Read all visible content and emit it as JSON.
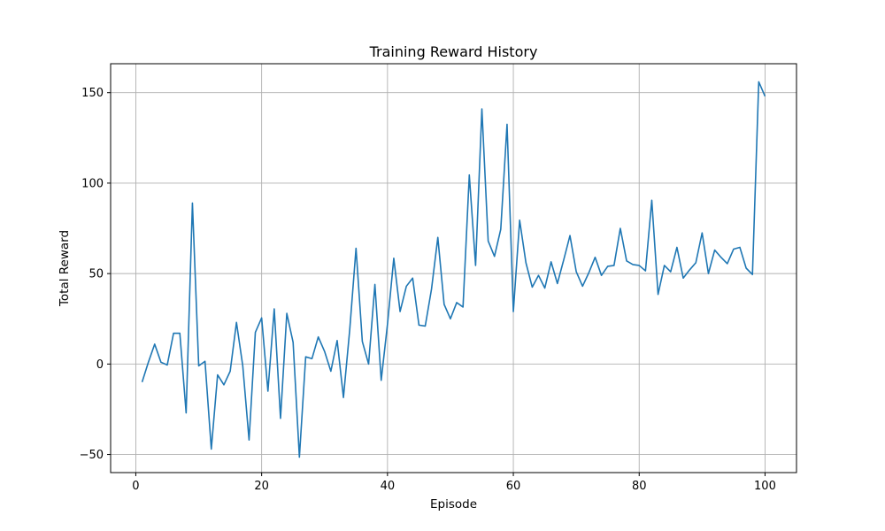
{
  "chart_data": {
    "type": "line",
    "title": "Training Reward History",
    "xlabel": "Episode",
    "ylabel": "Total Reward",
    "xlim": [
      -4,
      105
    ],
    "ylim": [
      -60,
      166
    ],
    "xticks": [
      0,
      20,
      40,
      60,
      80,
      100
    ],
    "yticks": [
      -50,
      0,
      50,
      100,
      150
    ],
    "xtick_labels": [
      "0",
      "20",
      "40",
      "60",
      "80",
      "100"
    ],
    "ytick_labels": [
      "−50",
      "0",
      "50",
      "100",
      "150"
    ],
    "grid": true,
    "line_color": "#1f77b4",
    "series": [
      {
        "x": [
          1,
          2,
          3,
          4,
          5,
          6,
          7,
          8,
          9,
          10,
          11,
          12,
          13,
          14,
          15,
          16,
          17,
          18,
          19,
          20,
          21,
          22,
          23,
          24,
          25,
          26,
          27,
          28,
          29,
          30,
          31,
          32,
          33,
          34,
          35,
          36,
          37,
          38,
          39,
          40,
          41,
          42,
          43,
          44,
          45,
          46,
          47,
          48,
          49,
          50,
          51,
          52,
          53,
          54,
          55,
          56,
          57,
          58,
          59,
          60,
          61,
          62,
          63,
          64,
          65,
          66,
          67,
          68,
          69,
          70,
          71,
          72,
          73,
          74,
          75,
          76,
          77,
          78,
          79,
          80,
          81,
          82,
          83,
          84,
          85,
          86,
          87,
          88,
          89,
          90,
          91,
          92,
          93,
          94,
          95,
          96,
          97,
          98,
          99,
          100
        ],
        "values": [
          -10,
          1,
          11,
          1,
          -0.5,
          17,
          17,
          -27,
          89,
          -1,
          1.5,
          -47,
          -6,
          -11.5,
          -4,
          23,
          -1,
          -42,
          17.5,
          25.5,
          -15,
          30.5,
          -30,
          28,
          12,
          -51.5,
          4,
          3,
          15,
          7,
          -4,
          13,
          -18.5,
          19,
          64,
          12.5,
          0,
          44,
          -9,
          22,
          58.5,
          29,
          43,
          47.5,
          21.5,
          21,
          41.5,
          70,
          33,
          25,
          34,
          31.5,
          104.5,
          54.5,
          141,
          68,
          59.5,
          74.5,
          132.5,
          29,
          79.5,
          56,
          42.5,
          49,
          42,
          56.5,
          44.5,
          57.5,
          71,
          51,
          43,
          50.5,
          59,
          49,
          54,
          54.5,
          75,
          57,
          55,
          54.5,
          51.5,
          90.5,
          38.5,
          54.5,
          51,
          64.5,
          47.5,
          52,
          56,
          72.5,
          50,
          63,
          59,
          55.5,
          63.5,
          64.5,
          53,
          49.5,
          156,
          148
        ]
      }
    ]
  }
}
